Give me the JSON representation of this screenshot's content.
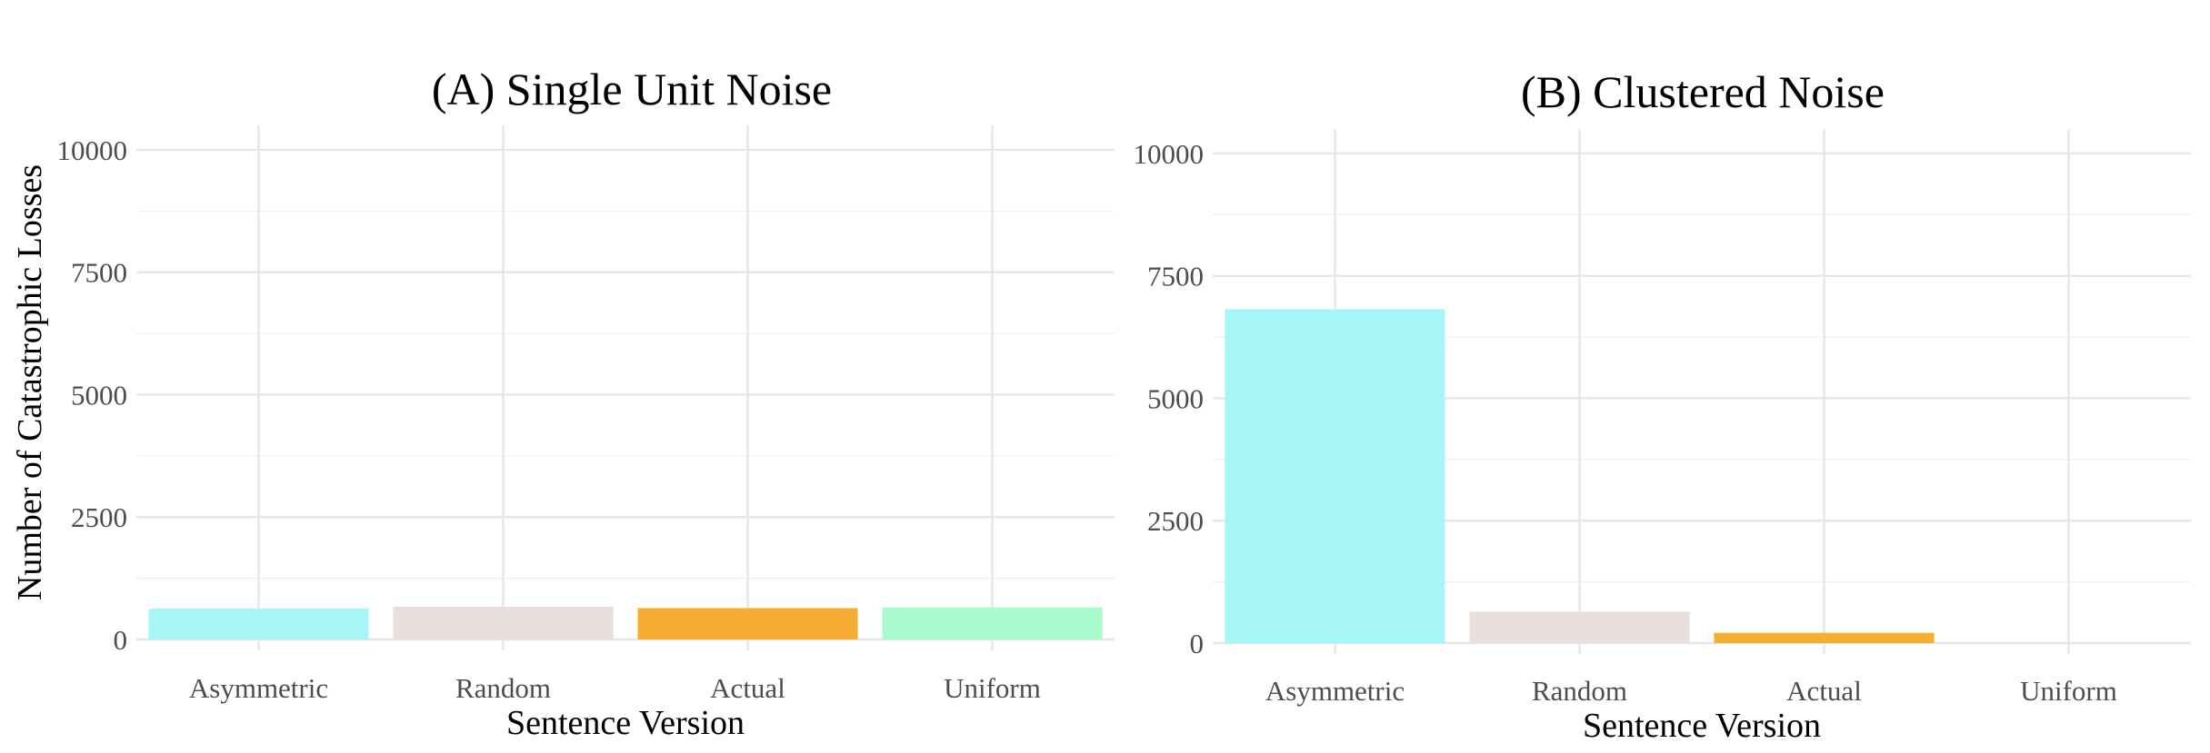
{
  "chart_data": [
    {
      "type": "bar",
      "title": "(A) Single Unit Noise",
      "xlabel": "Sentence Version",
      "ylabel": "Number of Catastrophic Losses",
      "categories": [
        "Asymmetric",
        "Random",
        "Actual",
        "Uniform"
      ],
      "values": [
        630,
        670,
        640,
        655
      ],
      "ylim": [
        0,
        10500
      ],
      "yticks": [
        0,
        2500,
        5000,
        7500,
        10000
      ],
      "ytick_labels": [
        "0",
        "2500",
        "5000",
        "7500",
        "10000"
      ],
      "grid": true,
      "legend": "none"
    },
    {
      "type": "bar",
      "title": "(B) Clustered Noise",
      "xlabel": "Sentence Version",
      "ylabel": "",
      "categories": [
        "Asymmetric",
        "Random",
        "Actual",
        "Uniform"
      ],
      "values": [
        6820,
        640,
        210,
        0
      ],
      "ylim": [
        0,
        10500
      ],
      "yticks": [
        0,
        2500,
        5000,
        7500,
        10000
      ],
      "ytick_labels": [
        "0",
        "2500",
        "5000",
        "7500",
        "10000"
      ],
      "grid": true,
      "legend": "none"
    }
  ],
  "colors": {
    "Asymmetric": "#a6f6f8",
    "Random": "#e8dedd",
    "Actual": "#f5ae32",
    "Uniform": "#abfacd"
  }
}
